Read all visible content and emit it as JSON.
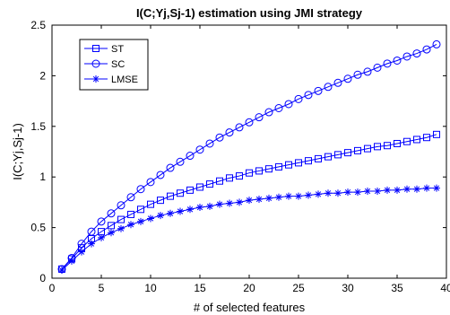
{
  "chart_data": {
    "type": "line",
    "title": "I(C;Yj,Sj-1) estimation using JMI strategy",
    "xlabel": "# of selected features",
    "ylabel": "I(C;Yj,Sj-1)",
    "xlim": [
      0,
      40
    ],
    "ylim": [
      0,
      2.5
    ],
    "xticks": [
      0,
      5,
      10,
      15,
      20,
      25,
      30,
      35,
      40
    ],
    "yticks": [
      0,
      0.5,
      1,
      1.5,
      2,
      2.5
    ],
    "xtick_labels": [
      "0",
      "5",
      "10",
      "15",
      "20",
      "25",
      "30",
      "35",
      "40"
    ],
    "ytick_labels": [
      "0",
      "0.5",
      "1",
      "1.5",
      "2",
      "2.5"
    ],
    "grid": false,
    "legend_position": "top-left",
    "x": [
      1,
      2,
      3,
      4,
      5,
      6,
      7,
      8,
      9,
      10,
      11,
      12,
      13,
      14,
      15,
      16,
      17,
      18,
      19,
      20,
      21,
      22,
      23,
      24,
      25,
      26,
      27,
      28,
      29,
      30,
      31,
      32,
      33,
      34,
      35,
      36,
      37,
      38,
      39
    ],
    "series": [
      {
        "name": "ST",
        "marker": "square",
        "color": "#0000ff",
        "values": [
          0.09,
          0.19,
          0.3,
          0.39,
          0.46,
          0.52,
          0.58,
          0.63,
          0.68,
          0.73,
          0.77,
          0.81,
          0.84,
          0.87,
          0.9,
          0.93,
          0.96,
          0.99,
          1.01,
          1.04,
          1.06,
          1.08,
          1.1,
          1.12,
          1.14,
          1.16,
          1.18,
          1.2,
          1.22,
          1.24,
          1.26,
          1.28,
          1.3,
          1.31,
          1.33,
          1.35,
          1.37,
          1.39,
          1.42
        ]
      },
      {
        "name": "SC",
        "marker": "circle",
        "color": "#0000ff",
        "values": [
          0.09,
          0.2,
          0.34,
          0.46,
          0.56,
          0.64,
          0.72,
          0.8,
          0.88,
          0.95,
          1.02,
          1.09,
          1.15,
          1.21,
          1.27,
          1.33,
          1.39,
          1.44,
          1.49,
          1.54,
          1.59,
          1.64,
          1.68,
          1.72,
          1.77,
          1.81,
          1.85,
          1.89,
          1.93,
          1.97,
          2.01,
          2.04,
          2.08,
          2.12,
          2.15,
          2.19,
          2.22,
          2.26,
          2.31
        ]
      },
      {
        "name": "LMSE",
        "marker": "asterisk",
        "color": "#0000ff",
        "values": [
          0.08,
          0.17,
          0.26,
          0.34,
          0.4,
          0.45,
          0.49,
          0.53,
          0.56,
          0.59,
          0.62,
          0.64,
          0.66,
          0.68,
          0.7,
          0.71,
          0.73,
          0.74,
          0.75,
          0.77,
          0.78,
          0.79,
          0.8,
          0.81,
          0.81,
          0.82,
          0.83,
          0.84,
          0.84,
          0.85,
          0.85,
          0.86,
          0.86,
          0.87,
          0.87,
          0.88,
          0.88,
          0.89,
          0.89
        ]
      }
    ]
  }
}
